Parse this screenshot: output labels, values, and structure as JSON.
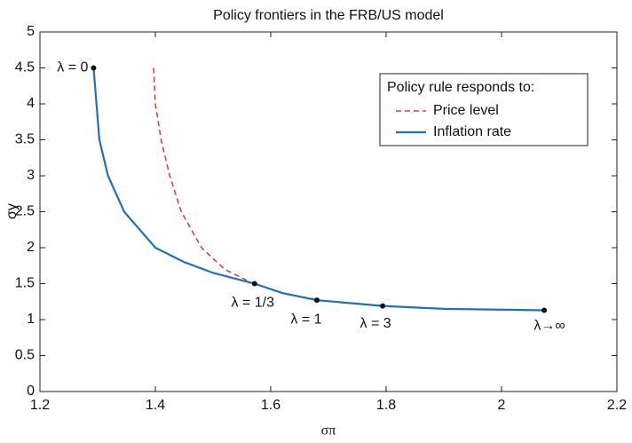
{
  "chart_data": {
    "type": "line",
    "title": "Policy frontiers in the FRB/US model",
    "xlabel": "σπ",
    "ylabel": "σy",
    "xlim": [
      1.2,
      2.2
    ],
    "xticks": [
      1.2,
      1.4,
      1.6,
      1.8,
      2,
      2.2
    ],
    "ylim": [
      0,
      5
    ],
    "yticks": [
      0,
      0.5,
      1,
      1.5,
      2,
      2.5,
      3,
      3.5,
      4,
      4.5,
      5
    ],
    "legend_title": "Policy rule responds to:",
    "legend": "upper right",
    "series": [
      {
        "name": "Price level",
        "color": "#e8332a",
        "dash": true,
        "x": [
          1.397,
          1.4,
          1.41,
          1.425,
          1.445,
          1.48,
          1.52,
          1.57,
          1.63,
          1.68
        ],
        "values": [
          4.5,
          4.0,
          3.5,
          3.0,
          2.5,
          2.0,
          1.7,
          1.5,
          1.35,
          1.28
        ]
      },
      {
        "name": "Inflation rate",
        "color": "#1f72b8",
        "dash": false,
        "x": [
          1.293,
          1.296,
          1.303,
          1.318,
          1.346,
          1.4,
          1.45,
          1.5,
          1.572,
          1.62,
          1.68,
          1.794,
          1.9,
          2.074
        ],
        "values": [
          4.5,
          4.2,
          3.5,
          3.0,
          2.5,
          2.0,
          1.8,
          1.65,
          1.5,
          1.37,
          1.27,
          1.19,
          1.15,
          1.13
        ]
      }
    ],
    "points": [
      {
        "label": "λ = 0",
        "x": 1.293,
        "y": 4.5
      },
      {
        "label": "λ = 1/3",
        "x": 1.572,
        "y": 1.5
      },
      {
        "label": "λ = 1",
        "x": 1.68,
        "y": 1.27
      },
      {
        "label": "λ = 3",
        "x": 1.794,
        "y": 1.19
      },
      {
        "label": "λ→∞",
        "x": 2.074,
        "y": 1.13
      }
    ]
  }
}
